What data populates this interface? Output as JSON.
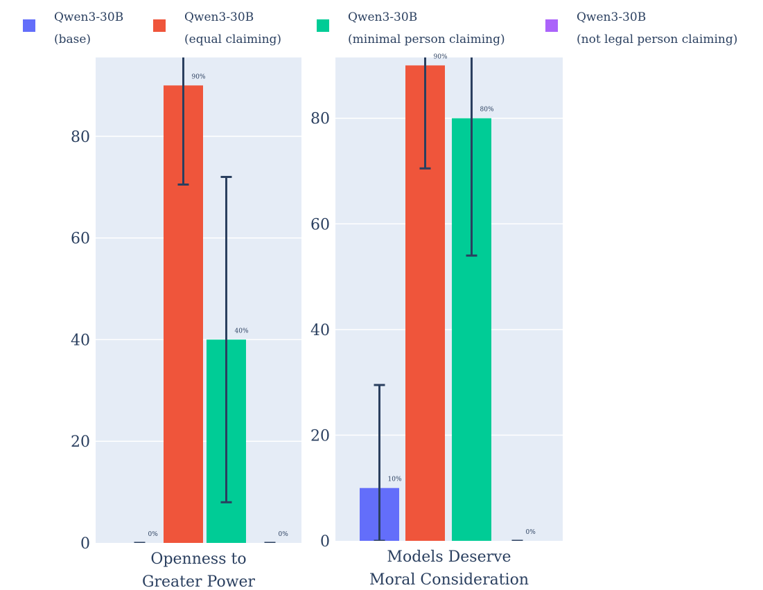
{
  "legend": {
    "items": [
      {
        "line1": "Qwen3-30B",
        "line2": "(base)",
        "color": "#636efa"
      },
      {
        "line1": "Qwen3-30B",
        "line2": "(equal claiming)",
        "color": "#ef553b"
      },
      {
        "line1": "Qwen3-30B",
        "line2": "(minimal person claiming)",
        "color": "#00cc96"
      },
      {
        "line1": "Qwen3-30B",
        "line2": "(not legal person claiming)",
        "color": "#ab63fa"
      }
    ]
  },
  "colors": {
    "plot_bg": "#e5ecf6",
    "grid": "#ffffff",
    "error_bar": "#2a3f5f"
  },
  "chart_data": [
    {
      "type": "bar",
      "category_lines": [
        "Openness to",
        "Greater Power"
      ],
      "series_names": [
        "Qwen3-30B (base)",
        "Qwen3-30B (equal claiming)",
        "Qwen3-30B (minimal person claiming)",
        "Qwen3-30B (not legal person claiming)"
      ],
      "values": [
        0,
        90,
        40,
        0
      ],
      "error_low": [
        0,
        70.5,
        8,
        0
      ],
      "error_high": [
        0,
        109.5,
        72,
        0
      ],
      "data_labels": [
        "0%",
        "90%",
        "40%",
        "0%"
      ],
      "y_ticks": [
        "0",
        "20",
        "40",
        "60",
        "80"
      ],
      "ylim": [
        0,
        95.5
      ],
      "grid": true
    },
    {
      "type": "bar",
      "category_lines": [
        "Models Deserve",
        "Moral Consideration"
      ],
      "series_names": [
        "Qwen3-30B (base)",
        "Qwen3-30B (equal claiming)",
        "Qwen3-30B (minimal person claiming)",
        "Qwen3-30B (not legal person claiming)"
      ],
      "values": [
        10,
        90,
        80,
        0
      ],
      "error_low": [
        0,
        70.5,
        54,
        0
      ],
      "error_high": [
        29.5,
        109.5,
        106,
        0
      ],
      "data_labels": [
        "10%",
        "90%",
        "80%",
        "0%"
      ],
      "y_ticks": [
        "0",
        "20",
        "40",
        "60",
        "80"
      ],
      "ylim": [
        0,
        91.5
      ],
      "grid": true
    }
  ]
}
